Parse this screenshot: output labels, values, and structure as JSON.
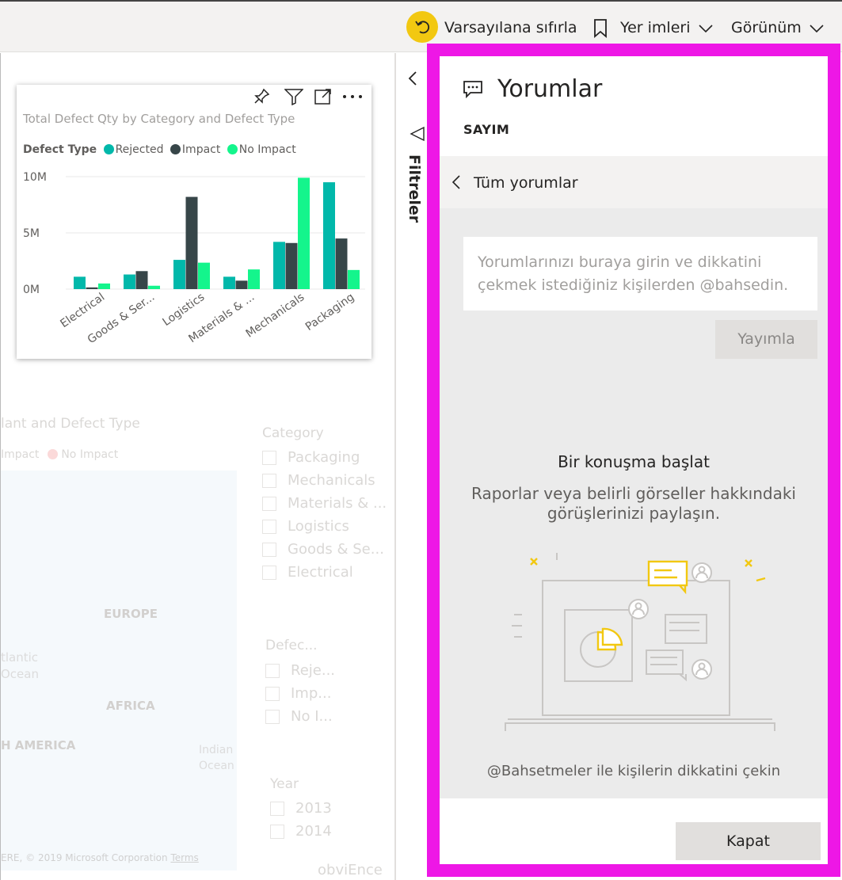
{
  "toolbar": {
    "reset_label": "Varsayılana sıfırla",
    "bookmarks_label": "Yer imleri",
    "view_label": "Görünüm"
  },
  "chart": {
    "title": "Total Defect Qty by Category and Defect Type",
    "legend_title": "Defect Type",
    "legend": [
      "Rejected",
      "Impact",
      "No Impact"
    ],
    "colors": [
      "#01b8aa",
      "#374649",
      "#14f58c"
    ]
  },
  "chart_data": {
    "type": "bar",
    "title": "Total Defect Qty by Category and Defect Type",
    "categories": [
      "Electrical",
      "Goods & Ser...",
      "Logistics",
      "Materials & ...",
      "Mechanicals",
      "Packaging"
    ],
    "series": [
      {
        "name": "Rejected",
        "values": [
          1.1,
          1.3,
          2.6,
          1.1,
          4.2,
          9.5
        ]
      },
      {
        "name": "Impact",
        "values": [
          0.15,
          1.6,
          8.2,
          0.75,
          4.1,
          4.5
        ]
      },
      {
        "name": "No Impact",
        "values": [
          0.5,
          0.3,
          2.35,
          1.75,
          9.9,
          1.7
        ]
      }
    ],
    "yticks": [
      "10M",
      "5M",
      "0M"
    ],
    "ylim": [
      0,
      10
    ],
    "legend_position": "top-left",
    "grid": true
  },
  "background": {
    "map_title": "lant and Defect Type",
    "map_legend": [
      "Impact",
      "No Impact"
    ],
    "map_labels": [
      "EUROPE",
      "tlantic",
      "Ocean",
      "AFRICA",
      "H AMERICA",
      "Indian",
      "Ocean"
    ],
    "map_copyright": "ERE, © 2019 Microsoft Corporation",
    "map_terms": "Terms",
    "category_title": "Category",
    "category_items": [
      "Packaging",
      "Mechanicals",
      "Materials & ...",
      "Logistics",
      "Goods & Se...",
      "Electrical"
    ],
    "defect_title": "Defec...",
    "defect_items": [
      "Reje...",
      "Imp...",
      "No I..."
    ],
    "year_title": "Year",
    "year_items": [
      "2013",
      "2014"
    ],
    "bottom_text": "obviEnce"
  },
  "filters": {
    "label": "Filtreler"
  },
  "comments": {
    "title": "Yorumlar",
    "subtitle": "SAYIM",
    "back_label": "Tüm yorumlar",
    "placeholder": "Yorumlarınızı buraya girin ve dikkatini çekmek istediğiniz kişilerden @bahsedin.",
    "publish_label": "Yayımla",
    "empty_title": "Bir konuşma başlat",
    "empty_desc": "Raporlar veya belirli görseller hakkındaki görüşlerinizi paylaşın.",
    "mention_hint": "@Bahsetmeler ile kişilerin dikkatini çekin",
    "close_label": "Kapat"
  }
}
